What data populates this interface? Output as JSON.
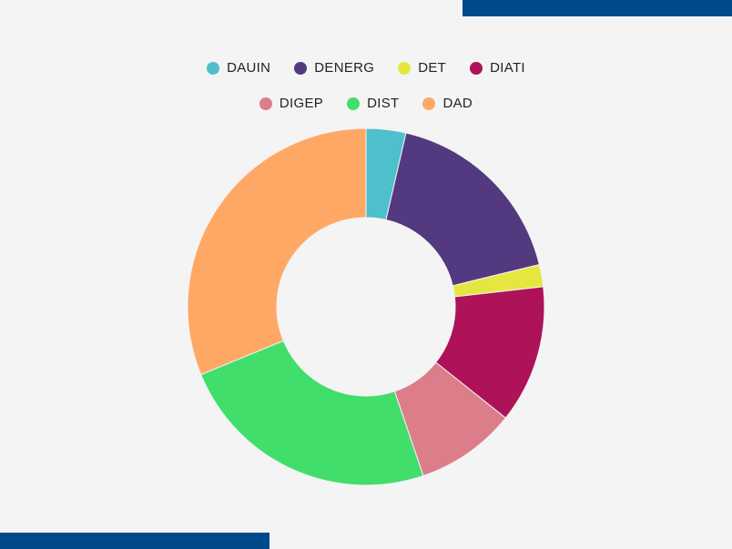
{
  "chart_data": {
    "type": "pie",
    "donut": true,
    "legend_position": "top-center",
    "categories": [
      "DAUIN",
      "DENERG",
      "DET",
      "DIATI",
      "DIGEP",
      "DIST",
      "DAD"
    ],
    "values": [
      3.6,
      17.6,
      2.0,
      12.5,
      9.1,
      24.0,
      31.2
    ],
    "colors": [
      "#4ec0cc",
      "#53397f",
      "#e6e640",
      "#ae1258",
      "#db7e8a",
      "#42de6c",
      "#ffa866"
    ]
  },
  "decor": {
    "accent_bar_color": "#004a8c",
    "background": "#f4f4f4"
  }
}
